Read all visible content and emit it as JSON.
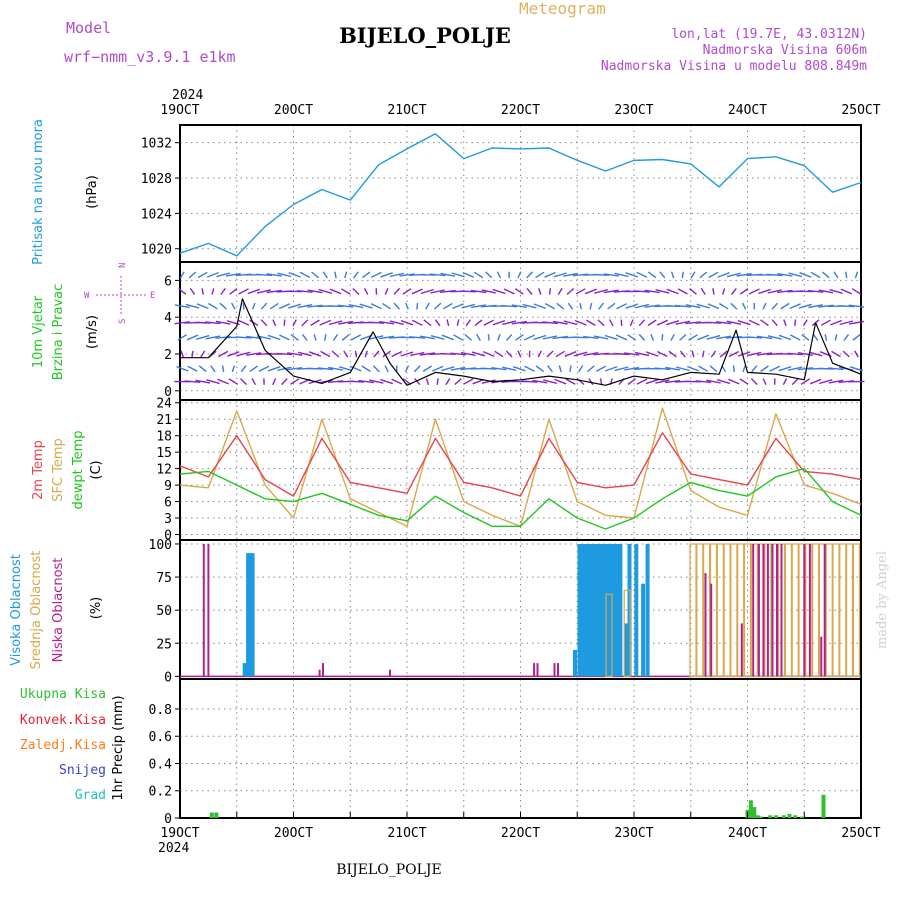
{
  "header": {
    "model_label": "Model",
    "model_name": "wrf−nmm_v3.9.1  e1km",
    "product": "Meteogram",
    "station": "BIJELO_POLJE",
    "coords": "lon,lat (19.7E, 43.0312N)",
    "altitude": "Nadmorska Visina 606m",
    "model_altitude": "Nadmorska Visina u modelu 808.849m"
  },
  "footer": {
    "station": "BIJELO_POLJE",
    "credit": "made by Angel"
  },
  "colors": {
    "pressure": "#1e9be0",
    "temp2m": "#e8434a",
    "sfc_temp": "#d9a84a",
    "dewpoint": "#1fc71f",
    "high_cloud": "#1e9be0",
    "mid_cloud": "#d9a84a",
    "low_cloud": "#b0208e",
    "total_precip": "#2ec02e",
    "conv_precip": "#ee2233",
    "freezing": "#ff7a1a",
    "snow": "#4040d0",
    "hail": "#20c0c0",
    "header_purple": "#b04ad0"
  },
  "time_axis": {
    "year_top": "2024",
    "year_bottom": "2024",
    "labels": [
      "19OCT",
      "20OCT",
      "21OCT",
      "22OCT",
      "23OCT",
      "24OCT",
      "25OCT"
    ]
  },
  "chart_data": [
    {
      "type": "line",
      "title": "Pritisak na nivou mora",
      "ylabel": "(hPa)",
      "ylim": [
        1018.5,
        1034
      ],
      "yticks": [
        "1020",
        "1024",
        "1028",
        "1032"
      ],
      "grid": true,
      "series": [
        {
          "name": "Pritisak na nivou mora",
          "x_days": [
            0,
            0.25,
            0.5,
            0.75,
            1,
            1.25,
            1.5,
            1.75,
            2,
            2.25,
            2.5,
            2.75,
            3,
            3.25,
            3.5,
            3.75,
            4,
            4.25,
            4.5,
            4.75,
            5,
            5.25,
            5.5,
            5.75,
            6
          ],
          "values": [
            1019.5,
            1020.6,
            1019.2,
            1022.5,
            1025.0,
            1026.7,
            1025.5,
            1029.5,
            1031.3,
            1033.0,
            1030.2,
            1031.4,
            1031.3,
            1031.4,
            1030.0,
            1028.8,
            1030.0,
            1030.1,
            1029.6,
            1027.0,
            1030.2,
            1030.4,
            1029.4,
            1026.4,
            1027.5
          ]
        }
      ]
    },
    {
      "type": "line",
      "title": "10m Vjetar Brzina i Pravac",
      "ylabel": "(m/s)",
      "ylim": [
        -0.5,
        7
      ],
      "yticks": [
        "0",
        "2",
        "4",
        "6"
      ],
      "grid": true,
      "direction_legend": {
        "n": "N",
        "s": "S",
        "e": "E",
        "w": "W"
      },
      "series": [
        {
          "name": "10m Vjetar",
          "x_days": [
            0,
            0.25,
            0.5,
            0.55,
            0.75,
            1,
            1.25,
            1.5,
            1.7,
            1.85,
            2,
            2.25,
            2.5,
            2.75,
            3,
            3.25,
            3.5,
            3.75,
            4,
            4.25,
            4.5,
            4.75,
            4.9,
            5,
            5.25,
            5.5,
            5.6,
            5.75,
            6
          ],
          "values": [
            1.8,
            1.8,
            3.5,
            5.0,
            2.2,
            0.8,
            0.4,
            1.0,
            3.2,
            1.5,
            0.3,
            1.0,
            0.8,
            0.5,
            0.6,
            0.8,
            0.6,
            0.3,
            0.8,
            0.6,
            1.0,
            0.9,
            3.3,
            1.0,
            0.9,
            0.6,
            3.7,
            1.5,
            0.9
          ]
        }
      ]
    },
    {
      "type": "line",
      "title": "2m Temp / SFC Temp / dewpt Temp",
      "ylabel": "(C)",
      "ylim": [
        -1,
        24.5
      ],
      "yticks": [
        "0",
        "3",
        "6",
        "9",
        "12",
        "15",
        "18",
        "21",
        "24"
      ],
      "grid": true,
      "legend": [
        "2m Temp",
        "SFC Temp",
        "dewpt Temp"
      ],
      "series": [
        {
          "name": "2m Temp",
          "x_days": [
            0,
            0.25,
            0.5,
            0.75,
            1,
            1.25,
            1.5,
            1.75,
            2,
            2.25,
            2.5,
            2.75,
            3,
            3.25,
            3.5,
            3.75,
            4,
            4.25,
            4.5,
            4.75,
            5,
            5.25,
            5.5,
            5.75,
            6
          ],
          "values": [
            12.5,
            10.5,
            18.0,
            10.0,
            7.0,
            17.5,
            9.5,
            8.5,
            7.5,
            17.5,
            9.5,
            8.5,
            7.0,
            17.5,
            9.5,
            8.5,
            9.0,
            18.5,
            11.0,
            10.0,
            9.0,
            17.5,
            11.5,
            11.0,
            10.0
          ]
        },
        {
          "name": "SFC Temp",
          "x_days": [
            0,
            0.25,
            0.5,
            0.75,
            1,
            1.25,
            1.5,
            1.75,
            2,
            2.25,
            2.5,
            2.75,
            3,
            3.25,
            3.5,
            3.75,
            4,
            4.25,
            4.5,
            4.75,
            5,
            5.25,
            5.5,
            5.75,
            6
          ],
          "values": [
            9.0,
            8.5,
            22.5,
            9.0,
            3.0,
            21.0,
            6.5,
            4.0,
            1.5,
            21.0,
            6.0,
            3.5,
            1.5,
            21.0,
            6.0,
            3.5,
            3.0,
            23.0,
            8.0,
            5.0,
            3.5,
            22.0,
            9.0,
            7.5,
            5.5
          ]
        },
        {
          "name": "dewpt Temp",
          "x_days": [
            0,
            0.25,
            0.5,
            0.75,
            1,
            1.25,
            1.5,
            1.75,
            2,
            2.25,
            2.5,
            2.75,
            3,
            3.25,
            3.5,
            3.75,
            4,
            4.25,
            4.5,
            4.75,
            5,
            5.25,
            5.5,
            5.75,
            6
          ],
          "values": [
            11.0,
            11.5,
            9.0,
            6.5,
            6.0,
            7.5,
            5.5,
            3.5,
            2.5,
            7.0,
            4.0,
            1.5,
            1.5,
            6.5,
            3.0,
            1.0,
            3.0,
            6.5,
            9.5,
            8.0,
            7.0,
            10.5,
            12.0,
            6.0,
            3.5
          ]
        }
      ]
    },
    {
      "type": "bar",
      "title": "Visoka / Srednja / Niska Oblacnost",
      "ylabel": "(%)",
      "ylim": [
        -2,
        103
      ],
      "yticks": [
        "0",
        "25",
        "50",
        "75",
        "100"
      ],
      "grid": true,
      "legend": [
        "Visoka Oblacnost",
        "Srednja Oblacnost",
        "Niska Oblacnost"
      ],
      "high_cloud": {
        "x_days": [
          0.57,
          0.6,
          0.62,
          0.64,
          3.48,
          3.52,
          3.55,
          3.58,
          3.61,
          3.64,
          3.67,
          3.7,
          3.73,
          3.76,
          3.79,
          3.82,
          3.85,
          3.88,
          3.93,
          3.96,
          4.02,
          4.08,
          4.12
        ],
        "values": [
          10,
          93,
          93,
          93,
          20,
          100,
          100,
          100,
          100,
          100,
          100,
          100,
          100,
          100,
          100,
          100,
          100,
          100,
          40,
          100,
          100,
          70,
          100
        ]
      },
      "mid_cloud": {
        "x_days": [
          3.78,
          3.94,
          4.52,
          4.58,
          4.64,
          4.7,
          4.76,
          4.82,
          4.88,
          4.94,
          5.0,
          5.06,
          5.12,
          5.18,
          5.24,
          5.3,
          5.36,
          5.42,
          5.48,
          5.54,
          5.6,
          5.66,
          5.72,
          5.78,
          5.84,
          5.9,
          5.96
        ],
        "values": [
          62,
          65,
          100,
          100,
          100,
          100,
          100,
          100,
          100,
          100,
          100,
          100,
          100,
          100,
          100,
          100,
          100,
          100,
          100,
          100,
          100,
          100,
          100,
          100,
          100,
          100,
          100
        ]
      },
      "low_cloud": {
        "x_days": [
          0.21,
          0.25,
          1.23,
          1.26,
          1.85,
          3.12,
          3.15,
          3.3,
          3.33,
          4.63,
          4.68,
          4.95,
          5.05,
          5.1,
          5.14,
          5.18,
          5.22,
          5.26,
          5.3,
          5.5,
          5.55,
          5.65,
          5.68
        ],
        "values": [
          100,
          100,
          5,
          10,
          5,
          10,
          10,
          10,
          10,
          78,
          70,
          40,
          100,
          100,
          100,
          100,
          100,
          100,
          100,
          100,
          100,
          30,
          100
        ]
      }
    },
    {
      "type": "bar",
      "title": "Ukupna / Konvek / Zaledj / Snijeg / Grad",
      "ylabel": "1hr Precip (mm)",
      "ylim": [
        0,
        1.02
      ],
      "yticks": [
        "0",
        "0.2",
        "0.4",
        "0.6",
        "0.8"
      ],
      "grid": true,
      "legend": [
        "Ukupna Kisa",
        "Konvek.Kisa",
        "Zaledj.Kisa",
        "Snijeg",
        "Grad"
      ],
      "series": [
        {
          "name": "Ukupna Kisa",
          "x_days": [
            0.28,
            0.32,
            5.0,
            5.03,
            5.06,
            5.09,
            5.12,
            5.2,
            5.25,
            5.32,
            5.37,
            5.42,
            5.48,
            5.67
          ],
          "values": [
            0.04,
            0.04,
            0.06,
            0.13,
            0.08,
            0.02,
            0.01,
            0.02,
            0.02,
            0.02,
            0.03,
            0.02,
            0.01,
            0.17
          ]
        }
      ]
    }
  ],
  "panel_labels": {
    "pressure": [
      "Pritisak na nivou mora"
    ],
    "wind": [
      "10m Vjetar",
      "Brzina i Pravac"
    ],
    "temp": [
      "2m Temp",
      "SFC Temp",
      "dewpt Temp"
    ],
    "cloud": [
      "Visoka Oblacnost",
      "Srednja Oblacnost",
      "Niska Oblacnost"
    ],
    "precip": [
      "Ukupna Kisa",
      "Konvek.Kisa",
      "Zaledj.Kisa",
      "Snijeg",
      "Grad"
    ]
  }
}
